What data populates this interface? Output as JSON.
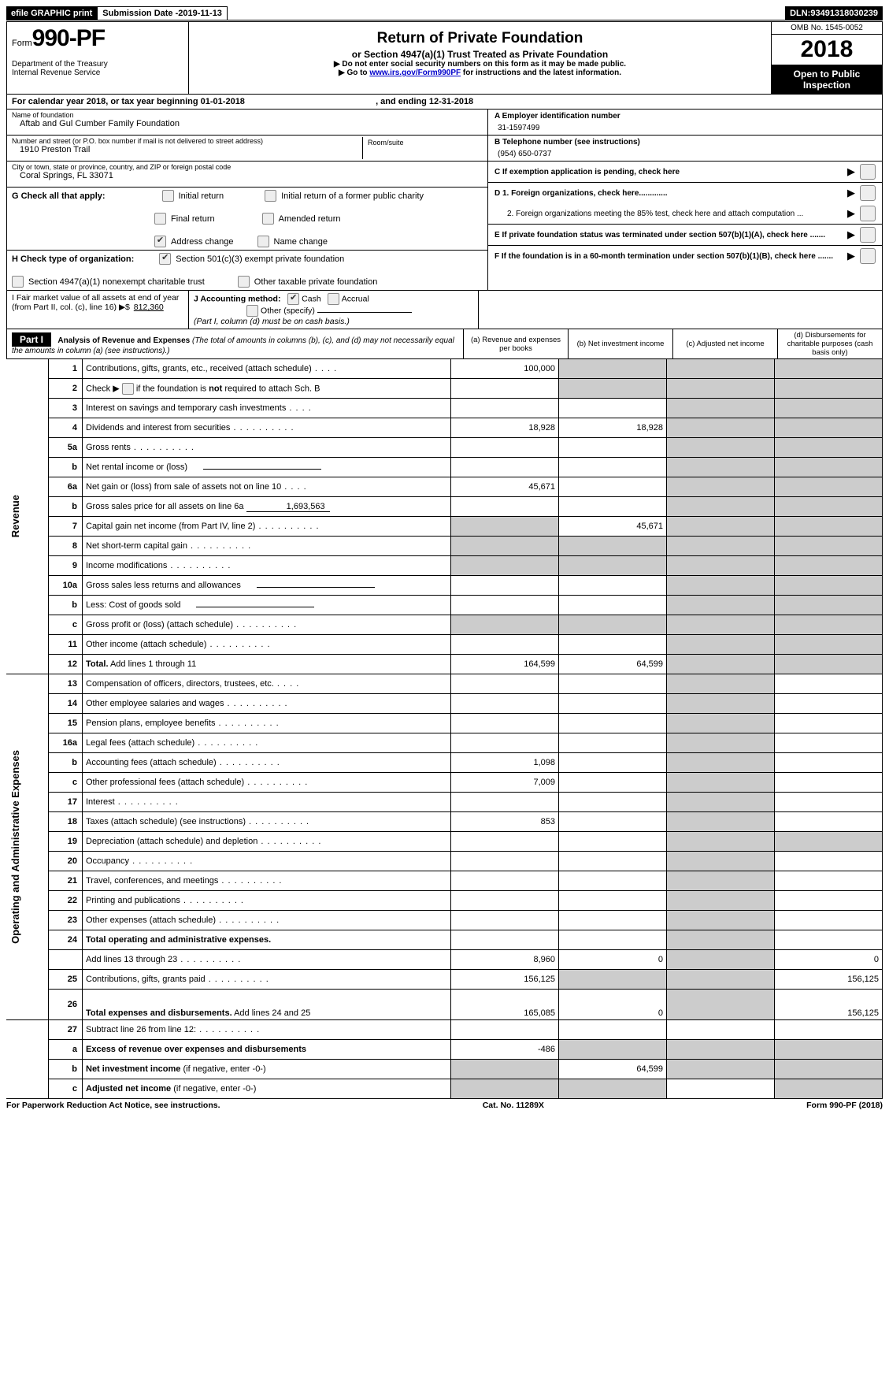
{
  "topbar": {
    "efile": "efile GRAPHIC print",
    "sub_label": "Submission Date - ",
    "sub_date": "2019-11-13",
    "dln_label": "DLN: ",
    "dln": "93491318030239"
  },
  "header": {
    "form_word": "Form",
    "form_no": "990-PF",
    "dept1": "Department of the Treasury",
    "dept2": "Internal Revenue Service",
    "title": "Return of Private Foundation",
    "subtitle": "or Section 4947(a)(1) Trust Treated as Private Foundation",
    "warn": "▶ Do not enter social security numbers on this form as it may be made public.",
    "goto_pre": "▶ Go to ",
    "goto_link": "www.irs.gov/Form990PF",
    "goto_post": " for instructions and the latest information.",
    "omb": "OMB No. 1545-0052",
    "year": "2018",
    "open": "Open to Public Inspection"
  },
  "cal": {
    "pre": "For calendar year 2018, or tax year beginning ",
    "begin": "01-01-2018",
    "mid": ", and ending ",
    "end": "12-31-2018"
  },
  "id": {
    "name_lbl": "Name of foundation",
    "name": "Aftab and Gul Cumber Family Foundation",
    "addr_lbl": "Number and street (or P.O. box number if mail is not delivered to street address)",
    "addr": "1910 Preston Trail",
    "room_lbl": "Room/suite",
    "city_lbl": "City or town, state or province, country, and ZIP or foreign postal code",
    "city": "Coral Springs, FL  33071",
    "a_lbl": "A Employer identification number",
    "a_val": "31-1597499",
    "b_lbl": "B Telephone number (see instructions)",
    "b_val": "(954) 650-0737",
    "c_lbl": "C  If exemption application is pending, check here",
    "d1": "D 1. Foreign organizations, check here.............",
    "d2": "2. Foreign organizations meeting the 85% test, check here and attach computation ...",
    "e": "E  If private foundation status was terminated under section 507(b)(1)(A), check here .......",
    "f": "F  If the foundation is in a 60-month termination under section 507(b)(1)(B), check here ......."
  },
  "g": {
    "lbl": "G Check all that apply:",
    "o1": "Initial return",
    "o2": "Initial return of a former public charity",
    "o3": "Final return",
    "o4": "Amended return",
    "o5": "Address change",
    "o6": "Name change"
  },
  "h": {
    "lbl": "H Check type of organization:",
    "o1": "Section 501(c)(3) exempt private foundation",
    "o2": "Section 4947(a)(1) nonexempt charitable trust",
    "o3": "Other taxable private foundation"
  },
  "i": {
    "lbl": "I Fair market value of all assets at end of year (from Part II, col. (c), line 16)  ▶$",
    "val": "812,360"
  },
  "j": {
    "lbl": "J Accounting method:",
    "o1": "Cash",
    "o2": "Accrual",
    "o3": "Other (specify)",
    "note": "(Part I, column (d) must be on cash basis.)"
  },
  "part1": {
    "hdr": "Part I",
    "title": "Analysis of Revenue and Expenses",
    "note": "(The total of amounts in columns (b), (c), and (d) may not necessarily equal the amounts in column (a) (see instructions).)",
    "col_a": "(a)    Revenue and expenses per books",
    "col_b": "(b)    Net investment income",
    "col_c": "(c)    Adjusted net income",
    "col_d": "(d)    Disbursements for charitable purposes (cash basis only)"
  },
  "side": {
    "rev": "Revenue",
    "exp": "Operating and Administrative Expenses"
  },
  "rows": {
    "r1": {
      "n": "1",
      "d": "Contributions, gifts, grants, etc., received (attach schedule)",
      "a": "100,000"
    },
    "r2": {
      "n": "2",
      "d": "Check ▶        if the foundation is not required to attach Sch. B",
      "cb": true
    },
    "r3": {
      "n": "3",
      "d": "Interest on savings and temporary cash investments"
    },
    "r4": {
      "n": "4",
      "d": "Dividends and interest from securities",
      "a": "18,928",
      "b": "18,928"
    },
    "r5a": {
      "n": "5a",
      "d": "Gross rents"
    },
    "r5b": {
      "n": "b",
      "d": "Net rental income or (loss)",
      "half": true
    },
    "r6a": {
      "n": "6a",
      "d": "Net gain or (loss) from sale of assets not on line 10",
      "a": "45,671"
    },
    "r6b": {
      "n": "b",
      "d": "Gross sales price for all assets on line 6a",
      "inline": "1,693,563"
    },
    "r7": {
      "n": "7",
      "d": "Capital gain net income (from Part IV, line 2)",
      "b": "45,671",
      "sa": true
    },
    "r8": {
      "n": "8",
      "d": "Net short-term capital gain",
      "sa": true,
      "sb": true
    },
    "r9": {
      "n": "9",
      "d": "Income modifications",
      "sa": true,
      "sb": true
    },
    "r10a": {
      "n": "10a",
      "d": "Gross sales less returns and allowances",
      "half": true
    },
    "r10b": {
      "n": "b",
      "d": "Less: Cost of goods sold",
      "half": true
    },
    "r10c": {
      "n": "c",
      "d": "Gross profit or (loss) (attach schedule)",
      "sa": true,
      "sb": true
    },
    "r11": {
      "n": "11",
      "d": "Other income (attach schedule)"
    },
    "r12": {
      "n": "12",
      "d": "Total.",
      "d2": " Add lines 1 through 11",
      "a": "164,599",
      "b": "64,599",
      "bold": true
    },
    "r13": {
      "n": "13",
      "d": "Compensation of officers, directors, trustees, etc."
    },
    "r14": {
      "n": "14",
      "d": "Other employee salaries and wages"
    },
    "r15": {
      "n": "15",
      "d": "Pension plans, employee benefits"
    },
    "r16a": {
      "n": "16a",
      "d": "Legal fees (attach schedule)"
    },
    "r16b": {
      "n": "b",
      "d": "Accounting fees (attach schedule)",
      "a": "1,098"
    },
    "r16c": {
      "n": "c",
      "d": "Other professional fees (attach schedule)",
      "a": "7,009"
    },
    "r17": {
      "n": "17",
      "d": "Interest"
    },
    "r18": {
      "n": "18",
      "d": "Taxes (attach schedule) (see instructions)",
      "a": "853"
    },
    "r19": {
      "n": "19",
      "d": "Depreciation (attach schedule) and depletion",
      "sdd": true
    },
    "r20": {
      "n": "20",
      "d": "Occupancy"
    },
    "r21": {
      "n": "21",
      "d": "Travel, conferences, and meetings"
    },
    "r22": {
      "n": "22",
      "d": "Printing and publications"
    },
    "r23": {
      "n": "23",
      "d": "Other expenses (attach schedule)"
    },
    "r24": {
      "n": "24",
      "d": "Total operating and administrative expenses.",
      "bold": true
    },
    "r24b": {
      "n": "",
      "d": "Add lines 13 through 23",
      "a": "8,960",
      "b": "0",
      "dd": "0"
    },
    "r25": {
      "n": "25",
      "d": "Contributions, gifts, grants paid",
      "a": "156,125",
      "sb": true,
      "dd": "156,125"
    },
    "r26": {
      "n": "26",
      "d": "Total expenses and disbursements.",
      "d2": " Add lines 24 and 25",
      "a": "165,085",
      "b": "0",
      "dd": "156,125",
      "bold": true,
      "tall": true
    },
    "r27": {
      "n": "27",
      "d": "Subtract line 26 from line 12:"
    },
    "r27a": {
      "n": "a",
      "d": "Excess of revenue over expenses and disbursements",
      "a": "-486",
      "bold": true,
      "sb": true,
      "sc": true,
      "sdd": true
    },
    "r27b": {
      "n": "b",
      "d": "Net investment income",
      "d2": " (if negative, enter -0-)",
      "b": "64,599",
      "bold": true,
      "sa": true,
      "sc": true,
      "sdd": true
    },
    "r27c": {
      "n": "c",
      "d": "Adjusted net income",
      "d2": " (if negative, enter -0-)",
      "bold": true,
      "sa": true,
      "sb": true,
      "sdd": true
    }
  },
  "footer": {
    "left": "For Paperwork Reduction Act Notice, see instructions.",
    "mid": "Cat. No. 11289X",
    "right": "Form 990-PF (2018)"
  }
}
